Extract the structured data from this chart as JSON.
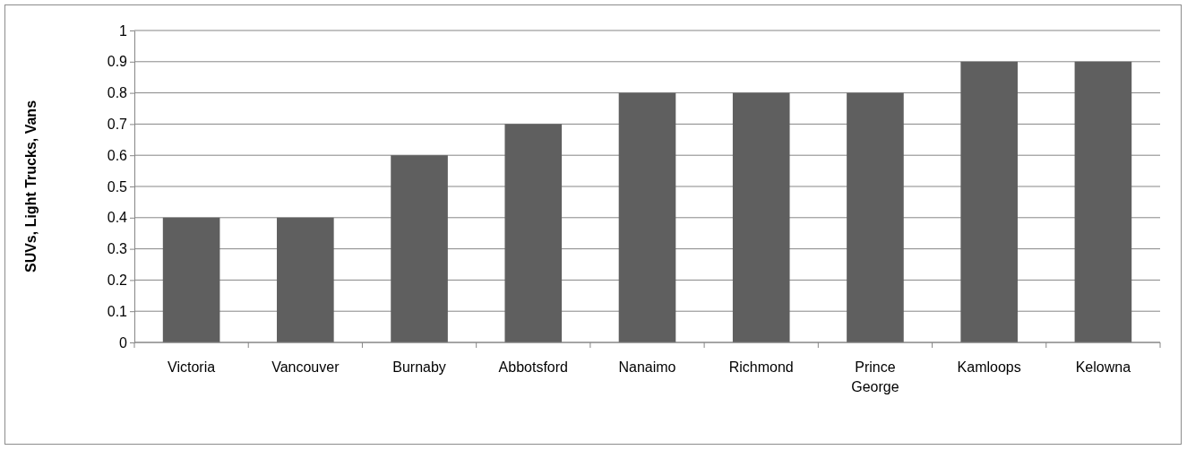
{
  "chart_data": {
    "type": "bar",
    "ylabel": "SUVs, Light Trucks, Vans",
    "categories": [
      "Victoria",
      "Vancouver",
      "Burnaby",
      "Abbotsford",
      "Nanaimo",
      "Richmond",
      "Prince George",
      "Kamloops",
      "Kelowna"
    ],
    "values": [
      0.4,
      0.4,
      0.6,
      0.7,
      0.8,
      0.8,
      0.8,
      0.9,
      0.9
    ],
    "color": "#5f5f5f",
    "ylim": [
      0,
      1
    ],
    "yticks": [
      0,
      0.1,
      0.2,
      0.3,
      0.4,
      0.5,
      0.6,
      0.7,
      0.8,
      0.9,
      1
    ],
    "grid": "y"
  }
}
